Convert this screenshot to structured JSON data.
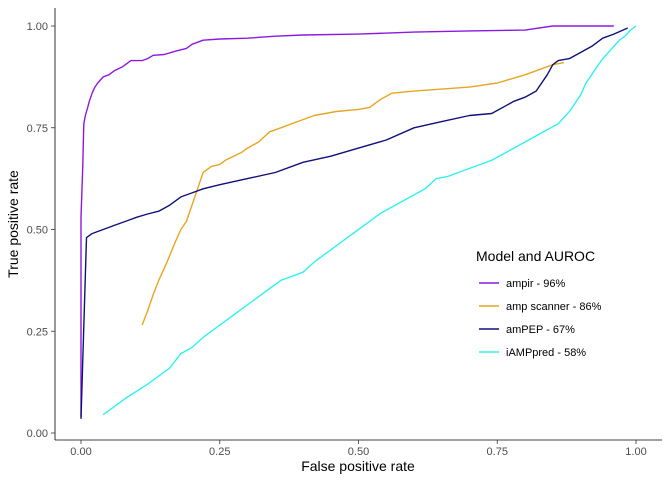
{
  "chart_data": {
    "type": "line",
    "xlabel": "False positive rate",
    "ylabel": "True positive rate",
    "xlim": [
      0,
      1
    ],
    "ylim": [
      0,
      1
    ],
    "x_ticks": [
      "0.00",
      "0.25",
      "0.50",
      "0.75",
      "1.00"
    ],
    "y_ticks": [
      "0.00",
      "0.25",
      "0.50",
      "0.75",
      "1.00"
    ],
    "grid": false,
    "legend": {
      "title": "Model and AUROC",
      "position": "right-middle"
    },
    "series": [
      {
        "name": "ampir - 96%",
        "color": "#8a1ae0",
        "points": [
          [
            0.0,
            0.04
          ],
          [
            0.0,
            0.53
          ],
          [
            0.003,
            0.65
          ],
          [
            0.005,
            0.76
          ],
          [
            0.008,
            0.78
          ],
          [
            0.01,
            0.79
          ],
          [
            0.012,
            0.8
          ],
          [
            0.015,
            0.815
          ],
          [
            0.02,
            0.835
          ],
          [
            0.025,
            0.85
          ],
          [
            0.03,
            0.86
          ],
          [
            0.04,
            0.875
          ],
          [
            0.05,
            0.88
          ],
          [
            0.06,
            0.89
          ],
          [
            0.075,
            0.9
          ],
          [
            0.09,
            0.915
          ],
          [
            0.11,
            0.915
          ],
          [
            0.12,
            0.92
          ],
          [
            0.13,
            0.928
          ],
          [
            0.15,
            0.93
          ],
          [
            0.17,
            0.938
          ],
          [
            0.19,
            0.945
          ],
          [
            0.2,
            0.955
          ],
          [
            0.22,
            0.965
          ],
          [
            0.25,
            0.968
          ],
          [
            0.3,
            0.97
          ],
          [
            0.35,
            0.975
          ],
          [
            0.4,
            0.978
          ],
          [
            0.5,
            0.98
          ],
          [
            0.6,
            0.985
          ],
          [
            0.7,
            0.988
          ],
          [
            0.8,
            0.99
          ],
          [
            0.85,
            1.0
          ],
          [
            0.96,
            1.0
          ]
        ]
      },
      {
        "name": "amp scanner - 86%",
        "color": "#e6a624",
        "points": [
          [
            0.11,
            0.265
          ],
          [
            0.12,
            0.3
          ],
          [
            0.13,
            0.34
          ],
          [
            0.14,
            0.375
          ],
          [
            0.155,
            0.42
          ],
          [
            0.17,
            0.47
          ],
          [
            0.18,
            0.5
          ],
          [
            0.19,
            0.52
          ],
          [
            0.2,
            0.56
          ],
          [
            0.21,
            0.6
          ],
          [
            0.22,
            0.64
          ],
          [
            0.235,
            0.655
          ],
          [
            0.25,
            0.66
          ],
          [
            0.26,
            0.67
          ],
          [
            0.275,
            0.68
          ],
          [
            0.29,
            0.69
          ],
          [
            0.3,
            0.7
          ],
          [
            0.32,
            0.715
          ],
          [
            0.34,
            0.74
          ],
          [
            0.36,
            0.75
          ],
          [
            0.38,
            0.76
          ],
          [
            0.4,
            0.77
          ],
          [
            0.42,
            0.78
          ],
          [
            0.46,
            0.79
          ],
          [
            0.5,
            0.795
          ],
          [
            0.52,
            0.8
          ],
          [
            0.54,
            0.82
          ],
          [
            0.56,
            0.835
          ],
          [
            0.6,
            0.84
          ],
          [
            0.65,
            0.845
          ],
          [
            0.7,
            0.85
          ],
          [
            0.75,
            0.86
          ],
          [
            0.8,
            0.88
          ],
          [
            0.85,
            0.905
          ],
          [
            0.87,
            0.91
          ]
        ]
      },
      {
        "name": "amPEP - 67%",
        "color": "#10107a",
        "points": [
          [
            0.0,
            0.035
          ],
          [
            0.01,
            0.48
          ],
          [
            0.02,
            0.49
          ],
          [
            0.03,
            0.495
          ],
          [
            0.04,
            0.5
          ],
          [
            0.06,
            0.51
          ],
          [
            0.08,
            0.52
          ],
          [
            0.1,
            0.53
          ],
          [
            0.12,
            0.538
          ],
          [
            0.14,
            0.545
          ],
          [
            0.16,
            0.56
          ],
          [
            0.18,
            0.58
          ],
          [
            0.2,
            0.59
          ],
          [
            0.22,
            0.6
          ],
          [
            0.25,
            0.61
          ],
          [
            0.3,
            0.625
          ],
          [
            0.35,
            0.64
          ],
          [
            0.4,
            0.665
          ],
          [
            0.45,
            0.68
          ],
          [
            0.5,
            0.7
          ],
          [
            0.55,
            0.72
          ],
          [
            0.6,
            0.75
          ],
          [
            0.65,
            0.765
          ],
          [
            0.7,
            0.78
          ],
          [
            0.74,
            0.785
          ],
          [
            0.78,
            0.815
          ],
          [
            0.8,
            0.825
          ],
          [
            0.82,
            0.84
          ],
          [
            0.84,
            0.88
          ],
          [
            0.85,
            0.905
          ],
          [
            0.86,
            0.915
          ],
          [
            0.88,
            0.92
          ],
          [
            0.9,
            0.935
          ],
          [
            0.92,
            0.95
          ],
          [
            0.94,
            0.97
          ],
          [
            0.96,
            0.98
          ],
          [
            0.985,
            0.995
          ]
        ]
      },
      {
        "name": "iAMPpred - 58%",
        "color": "#33f0f0",
        "points": [
          [
            0.04,
            0.045
          ],
          [
            0.08,
            0.085
          ],
          [
            0.12,
            0.12
          ],
          [
            0.16,
            0.16
          ],
          [
            0.18,
            0.195
          ],
          [
            0.2,
            0.21
          ],
          [
            0.22,
            0.235
          ],
          [
            0.24,
            0.255
          ],
          [
            0.26,
            0.275
          ],
          [
            0.28,
            0.295
          ],
          [
            0.3,
            0.315
          ],
          [
            0.32,
            0.335
          ],
          [
            0.34,
            0.355
          ],
          [
            0.36,
            0.375
          ],
          [
            0.38,
            0.385
          ],
          [
            0.4,
            0.395
          ],
          [
            0.42,
            0.42
          ],
          [
            0.44,
            0.44
          ],
          [
            0.46,
            0.46
          ],
          [
            0.48,
            0.48
          ],
          [
            0.5,
            0.5
          ],
          [
            0.52,
            0.52
          ],
          [
            0.54,
            0.54
          ],
          [
            0.56,
            0.555
          ],
          [
            0.58,
            0.57
          ],
          [
            0.6,
            0.585
          ],
          [
            0.62,
            0.6
          ],
          [
            0.64,
            0.625
          ],
          [
            0.66,
            0.63
          ],
          [
            0.68,
            0.64
          ],
          [
            0.7,
            0.65
          ],
          [
            0.72,
            0.66
          ],
          [
            0.74,
            0.67
          ],
          [
            0.76,
            0.685
          ],
          [
            0.78,
            0.7
          ],
          [
            0.8,
            0.715
          ],
          [
            0.82,
            0.73
          ],
          [
            0.84,
            0.745
          ],
          [
            0.86,
            0.76
          ],
          [
            0.88,
            0.79
          ],
          [
            0.9,
            0.83
          ],
          [
            0.91,
            0.86
          ],
          [
            0.92,
            0.88
          ],
          [
            0.93,
            0.9
          ],
          [
            0.94,
            0.92
          ],
          [
            0.95,
            0.935
          ],
          [
            0.96,
            0.95
          ],
          [
            0.97,
            0.965
          ],
          [
            0.98,
            0.975
          ],
          [
            0.99,
            0.99
          ],
          [
            1.0,
            1.0
          ]
        ]
      }
    ]
  }
}
